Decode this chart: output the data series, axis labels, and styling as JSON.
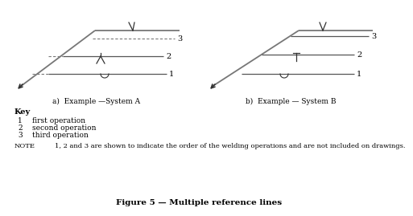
{
  "title": "Figure 5 — Multiple reference lines",
  "label_a": "a)  Example —System A",
  "label_b": "b)  Example — System B",
  "key_title": "Key",
  "key_items": [
    [
      "1",
      "first operation"
    ],
    [
      "2",
      "second operation"
    ],
    [
      "3",
      "third operation"
    ]
  ],
  "note_label": "NOTE",
  "note_text": "1, 2 and 3 are shown to indicate the order of the welding operations and are not included on drawings.",
  "line_color": "#888888",
  "dark_color": "#333333",
  "text_color": "#000000",
  "bg_color": "#ffffff"
}
